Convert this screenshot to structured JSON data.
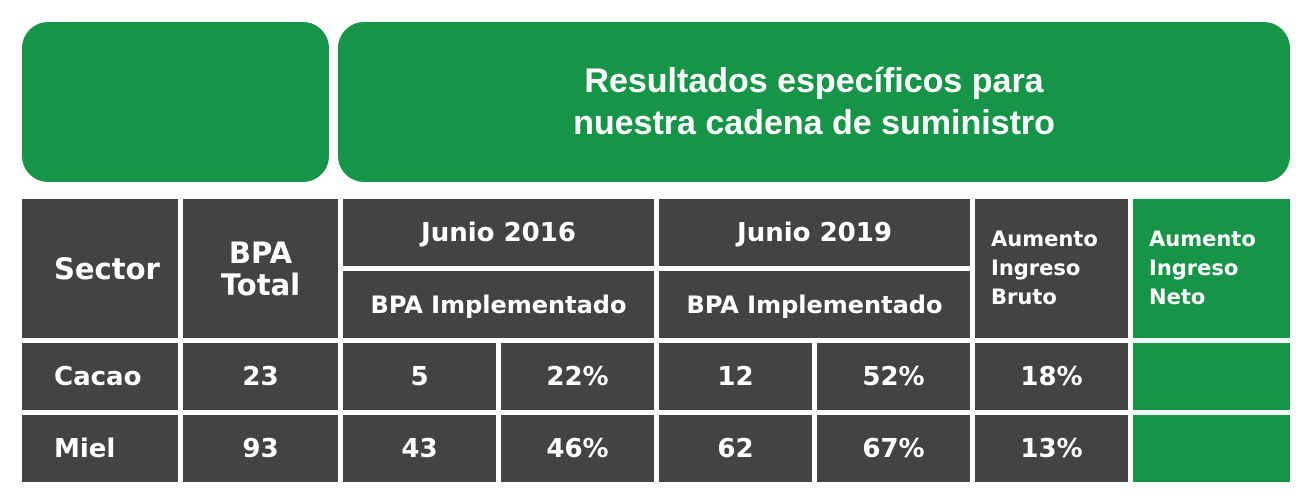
{
  "title": {
    "line1": "Resultados específicos para",
    "line2": "nuestra cadena de suministro"
  },
  "header": {
    "sector": "Sector",
    "bpa_total_line1": "BPA",
    "bpa_total_line2": "Total",
    "period_2016": "Junio 2016",
    "period_2019": "Junio 2019",
    "bpa_impl_2016": "BPA Implementado",
    "bpa_impl_2019": "BPA Implementado",
    "gross_line1": "Aumento",
    "gross_line2": "Ingreso",
    "gross_line3": "Bruto",
    "net_line1": "Aumento",
    "net_line2": "Ingreso",
    "net_line3": "Neto"
  },
  "rows": [
    {
      "sector": "Cacao",
      "bpa_total": "23",
      "impl_2016_count": "5",
      "impl_2016_pct": "22%",
      "impl_2019_count": "12",
      "impl_2019_pct": "52%",
      "gross_increase": "18%",
      "net_increase": ""
    },
    {
      "sector": "Miel",
      "bpa_total": "93",
      "impl_2016_count": "43",
      "impl_2016_pct": "46%",
      "impl_2019_count": "62",
      "impl_2019_pct": "67%",
      "gross_increase": "13%",
      "net_increase": ""
    }
  ],
  "colors": {
    "green": "#169447",
    "dark": "#434343",
    "text": "#ffffff"
  }
}
